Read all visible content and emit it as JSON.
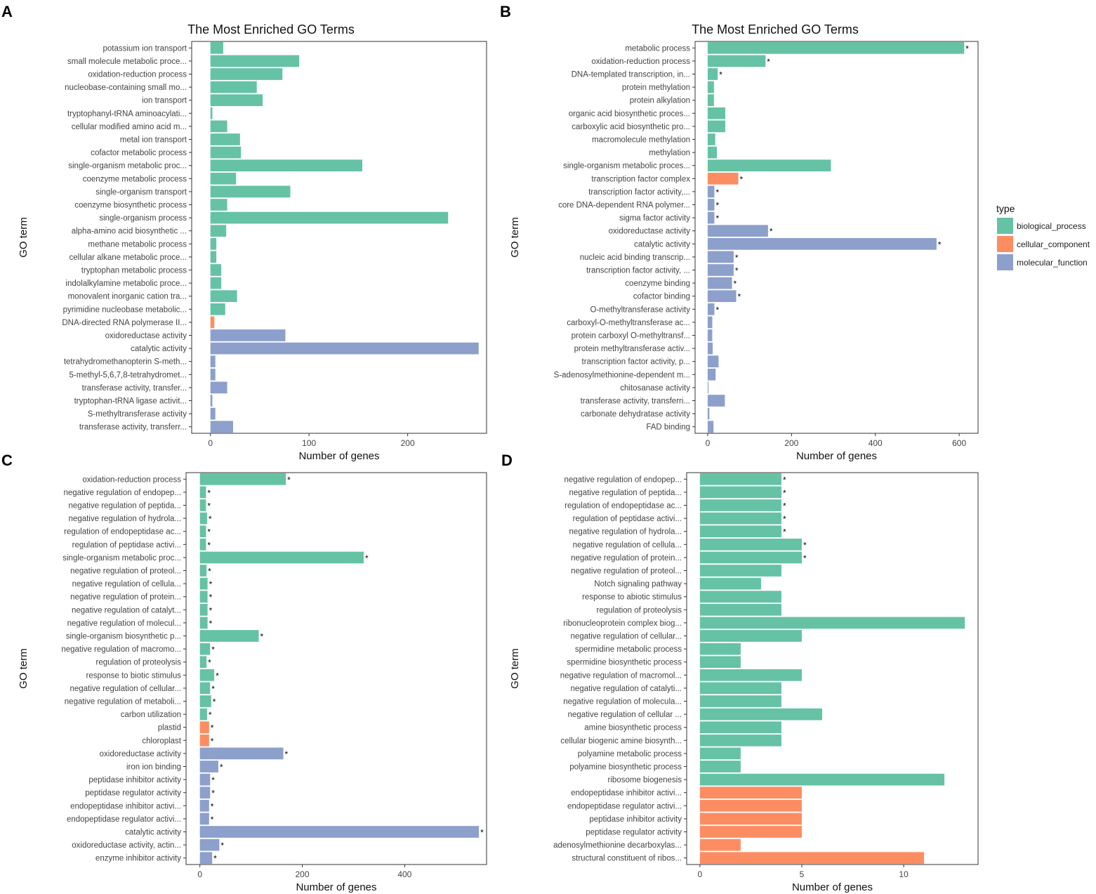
{
  "colors": {
    "biological_process": "#66c2a5",
    "cellular_component": "#fc8d62",
    "molecular_function": "#8da0cb"
  },
  "legend": {
    "title": "type",
    "items": [
      {
        "key": "biological_process",
        "label": "biological_process"
      },
      {
        "key": "cellular_component",
        "label": "cellular_component"
      },
      {
        "key": "molecular_function",
        "label": "molecular_function"
      }
    ]
  },
  "chart_data": [
    {
      "panel": "A",
      "type": "bar",
      "orientation": "horizontal",
      "title": "The Most Enriched GO Terms",
      "xlabel": "Number of genes",
      "ylabel": "GO term",
      "xlim": [
        -19,
        280
      ],
      "xticks": [
        0,
        100,
        200
      ],
      "categories": [
        "potassium ion transport",
        "small molecule metabolic proce...",
        "oxidation-reduction process",
        "nucleobase-containing small mo...",
        "ion transport",
        "tryptophanyl-tRNA aminoacylati...",
        "cellular modified amino acid m...",
        "metal ion transport",
        "cofactor metabolic process",
        "single-organism metabolic proc...",
        "coenzyme metabolic process",
        "single-organism transport",
        "coenzyme biosynthetic process",
        "single-organism process",
        "alpha-amino acid biosynthetic ...",
        "methane metabolic process",
        "cellular alkane metabolic proce...",
        "tryptophan metabolic process",
        "indolalkylamine metabolic proce...",
        "monovalent inorganic cation tra...",
        "pyrimidine nucleobase metabolic...",
        "DNA-directed RNA polymerase II...",
        "oxidoreductase activity",
        "catalytic activity",
        "tetrahydromethanopterin S-meth...",
        "5-methyl-5,6,7,8-tetrahydromet...",
        "transferase activity, transfer...",
        "tryptophan-tRNA ligase activit...",
        "S-methyltransferase activity",
        "transferase activity, transferr..."
      ],
      "values": [
        13,
        90,
        73,
        47,
        53,
        2,
        17,
        30,
        31,
        154,
        26,
        81,
        17,
        241,
        16,
        6,
        6,
        11,
        11,
        27,
        15,
        4,
        76,
        272,
        5,
        5,
        17,
        2,
        5,
        23
      ],
      "types": [
        "biological_process",
        "biological_process",
        "biological_process",
        "biological_process",
        "biological_process",
        "biological_process",
        "biological_process",
        "biological_process",
        "biological_process",
        "biological_process",
        "biological_process",
        "biological_process",
        "biological_process",
        "biological_process",
        "biological_process",
        "biological_process",
        "biological_process",
        "biological_process",
        "biological_process",
        "biological_process",
        "biological_process",
        "cellular_component",
        "molecular_function",
        "molecular_function",
        "molecular_function",
        "molecular_function",
        "molecular_function",
        "molecular_function",
        "molecular_function",
        "molecular_function"
      ],
      "significant": [
        false,
        false,
        false,
        false,
        false,
        false,
        false,
        false,
        false,
        false,
        false,
        false,
        false,
        false,
        false,
        false,
        false,
        false,
        false,
        false,
        false,
        false,
        false,
        false,
        false,
        false,
        false,
        false,
        false,
        false
      ]
    },
    {
      "panel": "B",
      "type": "bar",
      "orientation": "horizontal",
      "title": "The Most Enriched GO Terms",
      "xlabel": "Number of genes",
      "ylabel": "GO term",
      "xlim": [
        -30,
        645
      ],
      "xticks": [
        0,
        200,
        400,
        600
      ],
      "categories": [
        "metabolic process",
        "oxidation-reduction process",
        "DNA-templated transcription, in...",
        "protein methylation",
        "protein alkylation",
        "organic acid biosynthetic proces...",
        "carboxylic acid biosynthetic pro...",
        "macromolecule methylation",
        "methylation",
        "single-organism metabolic proces...",
        "transcription factor complex",
        "transcription factor activity,...",
        "core DNA-dependent RNA polymer...",
        "sigma factor activity",
        "oxidoreductase activity",
        "catalytic activity",
        "nucleic acid binding transcrip...",
        "transcription factor activity, ...",
        "coenzyme binding",
        "cofactor binding",
        "O-methyltransferase activity",
        "carboxyl-O-methyltransferase ac...",
        "protein carboxyl O-methyltransf...",
        "protein methyltransferase activ...",
        "transcription factor activity, p...",
        "S-adenosylmethionine-dependent m...",
        "chitosanase activity",
        "transferase activity, transferri...",
        "carbonate dehydratase activity",
        "FAD binding"
      ],
      "values": [
        612,
        138,
        24,
        15,
        15,
        42,
        42,
        18,
        22,
        294,
        73,
        16,
        16,
        16,
        144,
        546,
        62,
        62,
        58,
        68,
        16,
        11,
        11,
        12,
        26,
        19,
        2,
        41,
        4,
        14
      ],
      "types": [
        "biological_process",
        "biological_process",
        "biological_process",
        "biological_process",
        "biological_process",
        "biological_process",
        "biological_process",
        "biological_process",
        "biological_process",
        "biological_process",
        "cellular_component",
        "molecular_function",
        "molecular_function",
        "molecular_function",
        "molecular_function",
        "molecular_function",
        "molecular_function",
        "molecular_function",
        "molecular_function",
        "molecular_function",
        "molecular_function",
        "molecular_function",
        "molecular_function",
        "molecular_function",
        "molecular_function",
        "molecular_function",
        "molecular_function",
        "molecular_function",
        "molecular_function",
        "molecular_function"
      ],
      "significant": [
        true,
        true,
        true,
        false,
        false,
        false,
        false,
        false,
        false,
        false,
        true,
        true,
        true,
        true,
        true,
        true,
        true,
        true,
        true,
        true,
        true,
        false,
        false,
        false,
        false,
        false,
        false,
        false,
        false,
        false
      ]
    },
    {
      "panel": "C",
      "type": "bar",
      "orientation": "horizontal",
      "title": "",
      "xlabel": "Number of genes",
      "ylabel": "GO term",
      "xlim": [
        -27,
        560
      ],
      "xticks": [
        0,
        200,
        400
      ],
      "categories": [
        "oxidation-reduction process",
        "negative regulation of endopep...",
        "negative regulation of peptida...",
        "negative regulation of hydrola...",
        "regulation of endopeptidase ac...",
        "regulation of peptidase activi...",
        "single-organism metabolic proc...",
        "negative regulation of proteol...",
        "negative regulation of cellula...",
        "negative regulation of protein...",
        "negative regulation of catalyt...",
        "negative regulation of molecul...",
        "single-organism biosynthetic p...",
        "negative regulation of macromo...",
        "regulation of proteolysis",
        "response to biotic stimulus",
        "negative regulation of cellular...",
        "negative regulation of metaboli...",
        "carbon utilization",
        "plastid",
        "chloroplast",
        "oxidoreductase activity",
        "iron ion binding",
        "peptidase inhibitor activity",
        "peptidase regulator activity",
        "endopeptidase inhibitor activi...",
        "endopeptidase regulator activi...",
        "catalytic activity",
        "oxidoreductase activity, actin...",
        "enzyme inhibitor activity"
      ],
      "values": [
        168,
        12,
        12,
        14,
        12,
        12,
        320,
        13,
        15,
        15,
        15,
        15,
        115,
        20,
        13,
        28,
        20,
        22,
        14,
        18,
        18,
        163,
        36,
        20,
        20,
        18,
        18,
        545,
        38,
        24
      ],
      "types": [
        "biological_process",
        "biological_process",
        "biological_process",
        "biological_process",
        "biological_process",
        "biological_process",
        "biological_process",
        "biological_process",
        "biological_process",
        "biological_process",
        "biological_process",
        "biological_process",
        "biological_process",
        "biological_process",
        "biological_process",
        "biological_process",
        "biological_process",
        "biological_process",
        "biological_process",
        "cellular_component",
        "cellular_component",
        "molecular_function",
        "molecular_function",
        "molecular_function",
        "molecular_function",
        "molecular_function",
        "molecular_function",
        "molecular_function",
        "molecular_function",
        "molecular_function"
      ],
      "significant": [
        true,
        true,
        true,
        true,
        true,
        true,
        true,
        true,
        true,
        true,
        true,
        true,
        true,
        true,
        true,
        true,
        true,
        true,
        true,
        true,
        true,
        true,
        true,
        true,
        true,
        true,
        true,
        true,
        true,
        true
      ]
    },
    {
      "panel": "D",
      "type": "bar",
      "orientation": "horizontal",
      "title": "",
      "xlabel": "Number of genes",
      "ylabel": "GO term",
      "xlim": [
        -0.65,
        13.65
      ],
      "xticks": [
        0,
        5,
        10
      ],
      "categories": [
        "negative regulation of endopep...",
        "negative regulation of peptida...",
        "regulation of endopeptidase ac...",
        "regulation of peptidase activi...",
        "negative regulation of hydrola...",
        "negative regulation of cellula...",
        "negative regulation of protein...",
        "negative regulation of proteol...",
        "Notch signaling pathway",
        "response to abiotic stimulus",
        "regulation of proteolysis",
        "ribonucleoprotein complex biog...",
        "negative regulation of cellular...",
        "spermidine metabolic process",
        "spermidine biosynthetic process",
        "negative regulation of macromol...",
        "negative regulation of catalyti...",
        "negative regulation of molecula...",
        "negative regulation of cellular ...",
        "amine biosynthetic process",
        "cellular biogenic amine biosynth...",
        "polyamine metabolic process",
        "polyamine biosynthetic process",
        "ribosome biogenesis",
        "endopeptidase inhibitor activi...",
        "endopeptidase regulator activi...",
        "peptidase inhibitor activity",
        "peptidase regulator activity",
        "adenosylmethionine decarboxylas...",
        "structural constituent of ribos..."
      ],
      "values": [
        4,
        4,
        4,
        4,
        4,
        5,
        5,
        4,
        3,
        4,
        4,
        13,
        5,
        2,
        2,
        5,
        4,
        4,
        6,
        4,
        4,
        2,
        2,
        12,
        5,
        5,
        5,
        5,
        2,
        11
      ],
      "types": [
        "biological_process",
        "biological_process",
        "biological_process",
        "biological_process",
        "biological_process",
        "biological_process",
        "biological_process",
        "biological_process",
        "biological_process",
        "biological_process",
        "biological_process",
        "biological_process",
        "biological_process",
        "biological_process",
        "biological_process",
        "biological_process",
        "biological_process",
        "biological_process",
        "biological_process",
        "biological_process",
        "biological_process",
        "biological_process",
        "biological_process",
        "biological_process",
        "cellular_component",
        "cellular_component",
        "cellular_component",
        "cellular_component",
        "cellular_component",
        "cellular_component"
      ],
      "significant": [
        true,
        true,
        true,
        true,
        true,
        true,
        true,
        false,
        false,
        false,
        false,
        false,
        false,
        false,
        false,
        false,
        false,
        false,
        false,
        false,
        false,
        false,
        false,
        false,
        false,
        false,
        false,
        false,
        false,
        false
      ]
    }
  ]
}
